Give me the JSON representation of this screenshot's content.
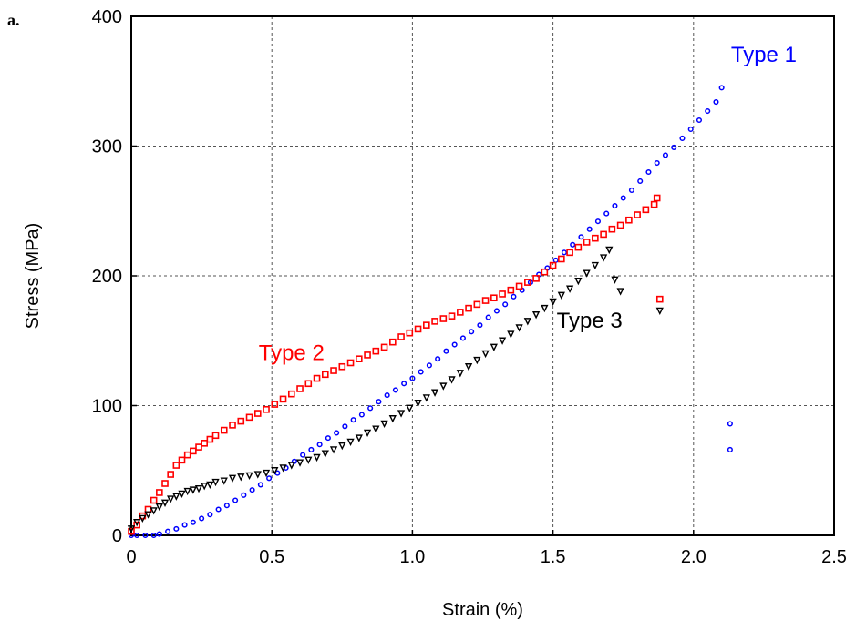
{
  "panel_label": "a.",
  "chart_data": {
    "type": "scatter",
    "xlabel": "Strain (%)",
    "ylabel": "Stress (MPa)",
    "xlim": [
      0,
      2.5
    ],
    "ylim": [
      0,
      400
    ],
    "xticks": [
      "0",
      "0.5",
      "1.0",
      "1.5",
      "2.0",
      "2.5"
    ],
    "yticks": [
      "0",
      "100",
      "200",
      "300",
      "400"
    ],
    "grid": true,
    "series": [
      {
        "name": "Type 1",
        "color": "#0000ff",
        "marker": "circle",
        "x": [
          0.0,
          0.02,
          0.05,
          0.08,
          0.1,
          0.13,
          0.16,
          0.19,
          0.22,
          0.25,
          0.28,
          0.31,
          0.34,
          0.37,
          0.4,
          0.43,
          0.46,
          0.49,
          0.52,
          0.55,
          0.58,
          0.61,
          0.64,
          0.67,
          0.7,
          0.73,
          0.76,
          0.79,
          0.82,
          0.85,
          0.88,
          0.91,
          0.94,
          0.97,
          1.0,
          1.03,
          1.06,
          1.09,
          1.12,
          1.15,
          1.18,
          1.21,
          1.24,
          1.27,
          1.3,
          1.33,
          1.36,
          1.39,
          1.42,
          1.45,
          1.48,
          1.51,
          1.54,
          1.57,
          1.6,
          1.63,
          1.66,
          1.69,
          1.72,
          1.75,
          1.78,
          1.81,
          1.84,
          1.87,
          1.9,
          1.93,
          1.96,
          1.99,
          2.02,
          2.05,
          2.08,
          2.1,
          2.13,
          2.13
        ],
        "y": [
          0,
          0,
          0,
          0,
          1,
          3,
          5,
          8,
          10,
          13,
          16,
          20,
          23,
          27,
          31,
          35,
          39,
          44,
          48,
          52,
          57,
          62,
          66,
          70,
          75,
          79,
          84,
          89,
          93,
          98,
          103,
          108,
          112,
          117,
          121,
          126,
          131,
          136,
          142,
          147,
          152,
          157,
          162,
          168,
          173,
          178,
          184,
          189,
          195,
          201,
          206,
          212,
          218,
          224,
          230,
          236,
          242,
          248,
          254,
          260,
          266,
          273,
          280,
          287,
          293,
          299,
          306,
          313,
          320,
          327,
          334,
          345,
          86,
          66
        ]
      },
      {
        "name": "Type 2",
        "color": "#ff0000",
        "marker": "square",
        "x": [
          0.0,
          0.02,
          0.04,
          0.06,
          0.08,
          0.1,
          0.12,
          0.14,
          0.16,
          0.18,
          0.2,
          0.22,
          0.24,
          0.26,
          0.28,
          0.3,
          0.33,
          0.36,
          0.39,
          0.42,
          0.45,
          0.48,
          0.51,
          0.54,
          0.57,
          0.6,
          0.63,
          0.66,
          0.69,
          0.72,
          0.75,
          0.78,
          0.81,
          0.84,
          0.87,
          0.9,
          0.93,
          0.96,
          0.99,
          1.02,
          1.05,
          1.08,
          1.11,
          1.14,
          1.17,
          1.2,
          1.23,
          1.26,
          1.29,
          1.32,
          1.35,
          1.38,
          1.41,
          1.44,
          1.47,
          1.5,
          1.53,
          1.56,
          1.59,
          1.62,
          1.65,
          1.68,
          1.71,
          1.74,
          1.77,
          1.8,
          1.83,
          1.86,
          1.87,
          1.88
        ],
        "y": [
          3,
          8,
          15,
          20,
          27,
          33,
          40,
          47,
          54,
          58,
          62,
          65,
          68,
          71,
          74,
          77,
          81,
          85,
          88,
          91,
          94,
          97,
          101,
          105,
          109,
          113,
          117,
          121,
          124,
          127,
          130,
          133,
          136,
          139,
          142,
          145,
          149,
          153,
          156,
          159,
          162,
          165,
          167,
          169,
          172,
          175,
          178,
          181,
          183,
          186,
          189,
          192,
          195,
          198,
          203,
          208,
          213,
          218,
          222,
          226,
          229,
          232,
          236,
          239,
          243,
          247,
          251,
          255,
          260,
          182
        ]
      },
      {
        "name": "Type 3",
        "color": "#000000",
        "marker": "triangle",
        "x": [
          0.0,
          0.02,
          0.04,
          0.06,
          0.08,
          0.1,
          0.12,
          0.14,
          0.16,
          0.18,
          0.2,
          0.22,
          0.24,
          0.26,
          0.28,
          0.3,
          0.33,
          0.36,
          0.39,
          0.42,
          0.45,
          0.48,
          0.51,
          0.54,
          0.57,
          0.6,
          0.63,
          0.66,
          0.69,
          0.72,
          0.75,
          0.78,
          0.81,
          0.84,
          0.87,
          0.9,
          0.93,
          0.96,
          0.99,
          1.02,
          1.05,
          1.08,
          1.11,
          1.14,
          1.17,
          1.2,
          1.23,
          1.26,
          1.29,
          1.32,
          1.35,
          1.38,
          1.41,
          1.44,
          1.47,
          1.5,
          1.53,
          1.56,
          1.59,
          1.62,
          1.65,
          1.68,
          1.7,
          1.72,
          1.74,
          1.88
        ],
        "y": [
          5,
          10,
          13,
          16,
          19,
          22,
          25,
          28,
          30,
          32,
          34,
          35,
          36,
          38,
          39,
          41,
          42,
          44,
          45,
          46,
          47,
          48,
          50,
          52,
          54,
          56,
          58,
          60,
          63,
          66,
          69,
          72,
          75,
          79,
          82,
          86,
          90,
          94,
          98,
          102,
          106,
          110,
          115,
          120,
          125,
          130,
          135,
          140,
          145,
          150,
          155,
          160,
          165,
          170,
          175,
          180,
          185,
          190,
          196,
          202,
          208,
          214,
          220,
          197,
          188,
          173
        ]
      }
    ],
    "annotations": [
      {
        "text": "Type 1",
        "color": "#0000ff",
        "x": 2.25,
        "y": 365
      },
      {
        "text": "Type 2",
        "color": "#ff0000",
        "x": 0.57,
        "y": 135
      },
      {
        "text": "Type 3",
        "color": "#000000",
        "x": 1.63,
        "y": 160
      }
    ]
  }
}
